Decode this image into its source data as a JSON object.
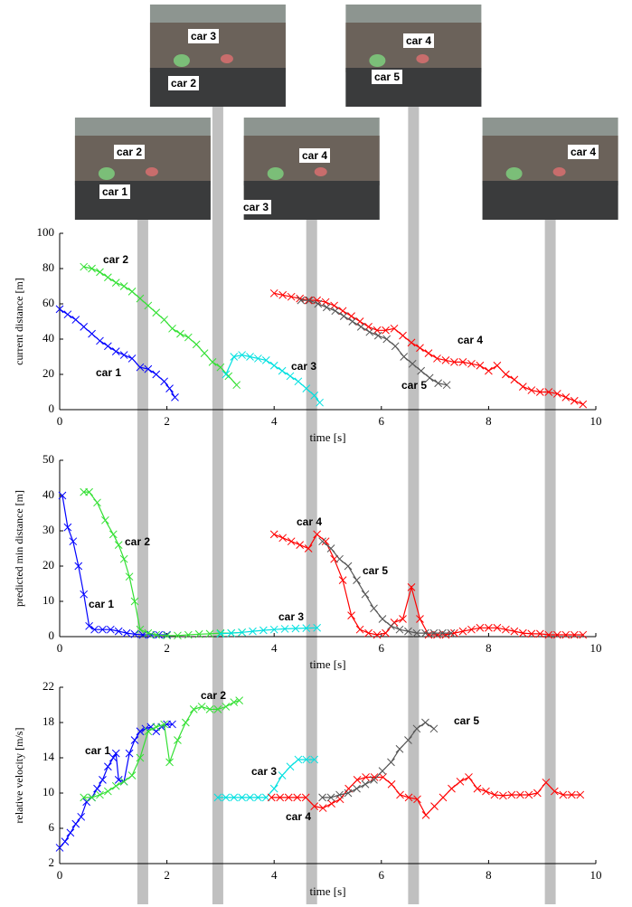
{
  "frames": [
    {
      "time": 1.55,
      "labels": [
        "car 2",
        "car 1"
      ]
    },
    {
      "time": 2.95,
      "labels": [
        "car 3",
        "car 2"
      ]
    },
    {
      "time": 4.7,
      "labels": [
        "car 4",
        "car 3"
      ]
    },
    {
      "time": 6.6,
      "labels": [
        "car 4",
        "car 5"
      ]
    },
    {
      "time": 9.15,
      "labels": [
        "car 4"
      ]
    }
  ],
  "chart_data": [
    {
      "type": "line",
      "xlabel": "time [s]",
      "ylabel": "current distance [m]",
      "marker": "x",
      "xlim": [
        0,
        10
      ],
      "xticks": [
        0,
        2,
        4,
        6,
        8,
        10
      ],
      "ylim": [
        0,
        100
      ],
      "yticks": [
        0,
        20,
        40,
        60,
        80,
        100
      ],
      "series": [
        {
          "name": "car 1",
          "color": "#0000ff",
          "x": [
            0,
            0.15,
            0.3,
            0.45,
            0.6,
            0.75,
            0.9,
            1.05,
            1.2,
            1.35,
            1.5,
            1.65,
            1.8,
            1.95,
            2.05,
            2.15
          ],
          "values": [
            57,
            54,
            51,
            47,
            43,
            39,
            36,
            33,
            31,
            29,
            24,
            23,
            20,
            16,
            12,
            7
          ]
        },
        {
          "name": "car 2",
          "color": "#33e033",
          "x": [
            0.45,
            0.6,
            0.75,
            0.9,
            1.05,
            1.2,
            1.35,
            1.5,
            1.65,
            1.8,
            1.95,
            2.1,
            2.25,
            2.4,
            2.55,
            2.7,
            2.85,
            3.0,
            3.15,
            3.3
          ],
          "values": [
            81,
            80,
            78,
            75,
            72,
            70,
            67,
            63,
            59,
            55,
            51,
            46,
            43,
            41,
            37,
            32,
            27,
            24,
            19,
            14
          ]
        },
        {
          "name": "car 3",
          "color": "#00e0e0",
          "x": [
            3.1,
            3.25,
            3.4,
            3.55,
            3.7,
            3.85,
            4.0,
            4.15,
            4.3,
            4.45,
            4.6,
            4.75,
            4.85
          ],
          "values": [
            20,
            30,
            31,
            30,
            29,
            28,
            25,
            22,
            19,
            16,
            12,
            8,
            4
          ]
        },
        {
          "name": "car 4",
          "color": "#ff0000",
          "x": [
            4.0,
            4.16,
            4.32,
            4.48,
            4.64,
            4.8,
            4.96,
            5.12,
            5.28,
            5.44,
            5.6,
            5.76,
            5.92,
            6.08,
            6.24,
            6.4,
            6.56,
            6.72,
            6.88,
            7.04,
            7.2,
            7.36,
            7.52,
            7.68,
            7.84,
            8.0,
            8.16,
            8.32,
            8.48,
            8.64,
            8.8,
            8.96,
            9.12,
            9.28,
            9.44,
            9.6,
            9.76
          ],
          "values": [
            66,
            65,
            64,
            63,
            62,
            62,
            61,
            59,
            56,
            53,
            50,
            47,
            45,
            45,
            46,
            42,
            38,
            35,
            32,
            29,
            28,
            27,
            27,
            26,
            25,
            22,
            25,
            20,
            17,
            13,
            11,
            10,
            10,
            9,
            7,
            5,
            3
          ]
        },
        {
          "name": "car 5",
          "color": "#555555",
          "x": [
            4.5,
            4.66,
            4.82,
            4.98,
            5.14,
            5.3,
            5.46,
            5.62,
            5.78,
            5.94,
            6.1,
            6.26,
            6.42,
            6.58,
            6.74,
            6.9,
            7.06,
            7.22
          ],
          "values": [
            62,
            62,
            60,
            58,
            56,
            53,
            50,
            47,
            44,
            42,
            40,
            36,
            30,
            26,
            22,
            18,
            15,
            14
          ]
        }
      ]
    },
    {
      "type": "line",
      "xlabel": "time [s]",
      "ylabel": "predicted min distance [m]",
      "marker": "x",
      "xlim": [
        0,
        10
      ],
      "xticks": [
        0,
        2,
        4,
        6,
        8,
        10
      ],
      "ylim": [
        0,
        50
      ],
      "yticks": [
        0,
        10,
        20,
        30,
        40,
        50
      ],
      "series": [
        {
          "name": "car 1",
          "color": "#0000ff",
          "x": [
            0.05,
            0.15,
            0.25,
            0.35,
            0.45,
            0.55,
            0.65,
            0.8,
            0.95,
            1.1,
            1.25,
            1.4,
            1.55,
            1.7,
            1.85,
            2.0
          ],
          "values": [
            40,
            31,
            27,
            20,
            12,
            3,
            2,
            2,
            2,
            1.5,
            1,
            0.7,
            0.5,
            0.5,
            0.5,
            0.5
          ]
        },
        {
          "name": "car 2",
          "color": "#33e033",
          "x": [
            0.45,
            0.55,
            0.7,
            0.85,
            1.0,
            1.1,
            1.2,
            1.3,
            1.4,
            1.5,
            1.65,
            1.8,
            2.0,
            2.2,
            2.4,
            2.6,
            2.8,
            3.0,
            3.2,
            3.4
          ],
          "values": [
            41,
            41,
            38,
            33,
            29,
            26,
            22,
            17,
            10,
            2,
            1,
            0.5,
            0.3,
            0.3,
            0.5,
            0.7,
            0.8,
            1,
            1,
            1.2
          ]
        },
        {
          "name": "car 3",
          "color": "#00e0e0",
          "x": [
            3.0,
            3.2,
            3.4,
            3.6,
            3.8,
            4.0,
            4.2,
            4.4,
            4.6,
            4.8
          ],
          "values": [
            0.8,
            1,
            1.2,
            1.5,
            1.8,
            2,
            2.2,
            2.3,
            2.4,
            2.5
          ]
        },
        {
          "name": "car 4",
          "color": "#ff0000",
          "x": [
            4.0,
            4.16,
            4.32,
            4.48,
            4.64,
            4.8,
            4.96,
            5.12,
            5.28,
            5.44,
            5.6,
            5.76,
            5.92,
            6.08,
            6.24,
            6.4,
            6.56,
            6.72,
            6.88,
            7.04,
            7.2,
            7.36,
            7.52,
            7.68,
            7.84,
            8.0,
            8.16,
            8.32,
            8.48,
            8.64,
            8.8,
            8.96,
            9.12,
            9.28,
            9.44,
            9.6,
            9.76
          ],
          "values": [
            29,
            28,
            27,
            26,
            25,
            29,
            27,
            22,
            16,
            6,
            2,
            1,
            0.5,
            1,
            4,
            5,
            14,
            5,
            0.5,
            0.5,
            0.5,
            1,
            1.5,
            2,
            2.5,
            2.5,
            2.5,
            2,
            1.5,
            1,
            0.8,
            0.8,
            0.5,
            0.5,
            0.5,
            0.5,
            0.5
          ]
        },
        {
          "name": "car 5",
          "color": "#555555",
          "x": [
            4.9,
            5.06,
            5.22,
            5.38,
            5.54,
            5.7,
            5.86,
            6.02,
            6.18,
            6.34,
            6.5,
            6.66,
            6.82,
            6.98,
            7.14,
            7.3
          ],
          "values": [
            27,
            25,
            22,
            20,
            16,
            12,
            8,
            5,
            3,
            2,
            1.5,
            1,
            1,
            1,
            1,
            1
          ]
        }
      ]
    },
    {
      "type": "line",
      "xlabel": "time [s]",
      "ylabel": "relative velocity [m/s]",
      "marker": "x",
      "xlim": [
        0,
        10
      ],
      "xticks": [
        0,
        2,
        4,
        6,
        8,
        10
      ],
      "ylim": [
        2,
        22
      ],
      "yticks": [
        2,
        6,
        10,
        14,
        18,
        22
      ],
      "series": [
        {
          "name": "car 1",
          "color": "#0000ff",
          "x": [
            0,
            0.1,
            0.2,
            0.3,
            0.4,
            0.5,
            0.6,
            0.7,
            0.8,
            0.9,
            1.0,
            1.05,
            1.1,
            1.2,
            1.3,
            1.4,
            1.5,
            1.6,
            1.7,
            1.8,
            1.9,
            2.0,
            2.1
          ],
          "values": [
            3.8,
            4.5,
            5.5,
            6.5,
            7.3,
            9,
            9.5,
            10.5,
            11.5,
            13,
            14,
            14.5,
            11.5,
            11.3,
            14.5,
            16,
            17,
            17.3,
            17.5,
            17,
            17.5,
            17.8,
            17.8
          ]
        },
        {
          "name": "car 2",
          "color": "#33e033",
          "x": [
            0.45,
            0.6,
            0.75,
            0.9,
            1.05,
            1.2,
            1.35,
            1.5,
            1.65,
            1.8,
            1.95,
            2.05,
            2.2,
            2.35,
            2.5,
            2.65,
            2.8,
            2.95,
            3.1,
            3.25,
            3.35
          ],
          "values": [
            9.5,
            9.5,
            9.8,
            10.2,
            10.8,
            11.3,
            12,
            14,
            17,
            17.5,
            17.8,
            13.5,
            16,
            18,
            19.5,
            19.8,
            19.5,
            19.5,
            19.8,
            20.3,
            20.5
          ]
        },
        {
          "name": "car 3",
          "color": "#00e0e0",
          "x": [
            2.95,
            3.1,
            3.25,
            3.4,
            3.55,
            3.7,
            3.85,
            4.0,
            4.15,
            4.3,
            4.45,
            4.6,
            4.75
          ],
          "values": [
            9.5,
            9.5,
            9.5,
            9.5,
            9.5,
            9.5,
            9.5,
            10.5,
            12,
            13,
            13.8,
            13.8,
            13.8
          ]
        },
        {
          "name": "car 4",
          "color": "#ff0000",
          "x": [
            3.95,
            4.11,
            4.27,
            4.43,
            4.59,
            4.75,
            4.91,
            5.07,
            5.23,
            5.39,
            5.55,
            5.71,
            5.87,
            6.03,
            6.19,
            6.35,
            6.51,
            6.67,
            6.83,
            6.99,
            7.15,
            7.31,
            7.47,
            7.63,
            7.79,
            7.95,
            8.11,
            8.27,
            8.43,
            8.59,
            8.75,
            8.91,
            9.07,
            9.23,
            9.39,
            9.55,
            9.71
          ],
          "values": [
            9.5,
            9.5,
            9.5,
            9.5,
            9.5,
            8.5,
            8.3,
            8.8,
            9.3,
            10.5,
            11.5,
            11.8,
            11.8,
            11.8,
            11,
            9.8,
            9.5,
            9.3,
            7.5,
            8.5,
            9.5,
            10.5,
            11.3,
            11.8,
            10.5,
            10.2,
            9.8,
            9.7,
            9.8,
            9.8,
            9.8,
            10,
            11.2,
            10.2,
            9.8,
            9.8,
            9.8
          ]
        },
        {
          "name": "car 5",
          "color": "#555555",
          "x": [
            4.9,
            5.06,
            5.22,
            5.38,
            5.54,
            5.7,
            5.86,
            6.02,
            6.18,
            6.34,
            6.5,
            6.66,
            6.82,
            6.98
          ],
          "values": [
            9.5,
            9.5,
            9.8,
            10,
            10.5,
            11,
            11.5,
            12.5,
            13.5,
            15,
            16,
            17.3,
            18,
            17.3
          ]
        }
      ]
    }
  ]
}
